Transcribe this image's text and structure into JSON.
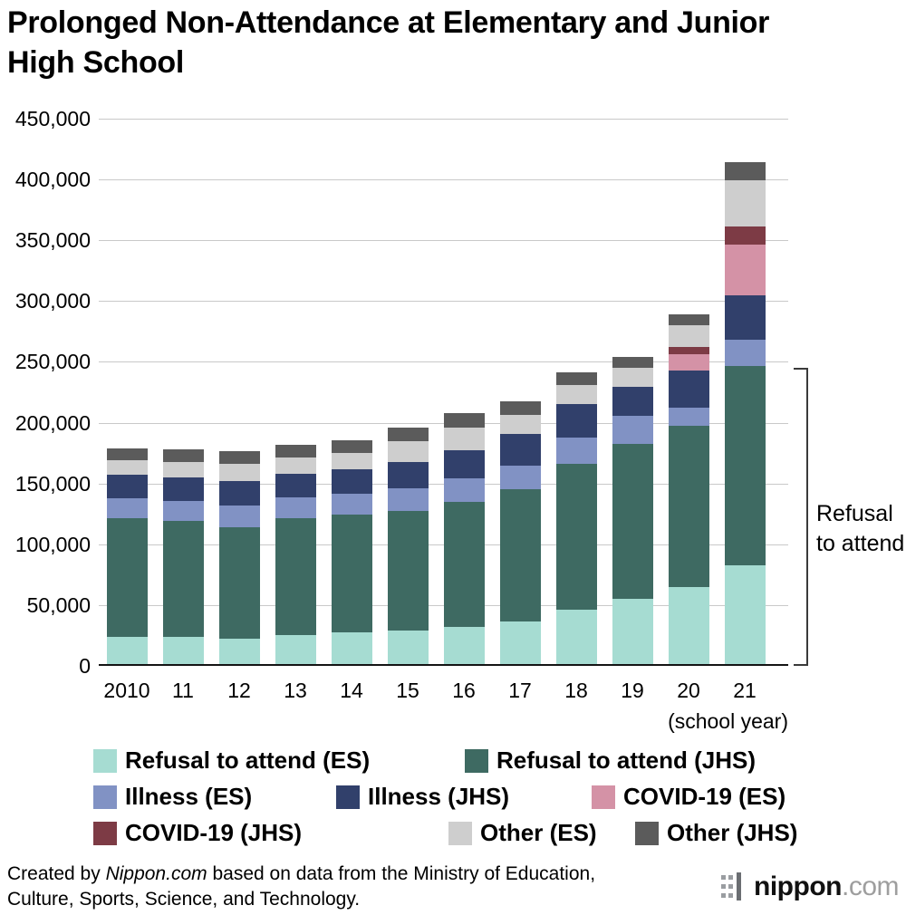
{
  "title": "Prolonged Non-Attendance at Elementary and Junior High School",
  "chart_data": {
    "type": "bar",
    "stacked": true,
    "title": "Prolonged Non-Attendance at Elementary and Junior High School",
    "categories": [
      "2010",
      "11",
      "12",
      "13",
      "14",
      "15",
      "16",
      "17",
      "18",
      "19",
      "20",
      "21"
    ],
    "x_axis_note": "(school year)",
    "ylim": [
      0,
      450000
    ],
    "yticks": [
      0,
      50000,
      100000,
      150000,
      200000,
      250000,
      300000,
      350000,
      400000,
      450000
    ],
    "grid": true,
    "legend_position": "bottom",
    "legend_rows": [
      [
        0,
        1
      ],
      [
        2,
        3,
        4
      ],
      [
        5,
        6,
        7
      ]
    ],
    "series": [
      {
        "name": "Refusal to attend (ES)",
        "color": "#a6dcd2",
        "values": [
          22300,
          22600,
          21200,
          24200,
          25900,
          27600,
          30400,
          35000,
          44800,
          53400,
          63400,
          81500
        ]
      },
      {
        "name": "Refusal to attend (JHS)",
        "color": "#3e6a62",
        "values": [
          97400,
          94800,
          91400,
          95400,
          97000,
          98400,
          103200,
          109000,
          119700,
          127900,
          132800,
          163400
        ]
      },
      {
        "name": "Illness (ES)",
        "color": "#8192c4",
        "values": [
          17000,
          17000,
          18000,
          17500,
          17500,
          18500,
          19000,
          19500,
          22000,
          23000,
          15000,
          22000
        ]
      },
      {
        "name": "Illness (JHS)",
        "color": "#31406b",
        "values": [
          19000,
          19000,
          20000,
          19500,
          20000,
          22000,
          23000,
          25500,
          27000,
          24000,
          30000,
          36000
        ]
      },
      {
        "name": "COVID-19 (ES)",
        "color": "#d492a6",
        "values": [
          0,
          0,
          0,
          0,
          0,
          0,
          0,
          0,
          0,
          0,
          14000,
          42000
        ]
      },
      {
        "name": "COVID-19 (JHS)",
        "color": "#7d3b45",
        "values": [
          0,
          0,
          0,
          0,
          0,
          0,
          0,
          0,
          0,
          0,
          5500,
          15000
        ]
      },
      {
        "name": "Other (ES)",
        "color": "#cecece",
        "values": [
          12000,
          13000,
          14000,
          13500,
          13500,
          16500,
          19000,
          16000,
          16000,
          15000,
          18000,
          38000
        ]
      },
      {
        "name": "Other (JHS)",
        "color": "#5b5b5b",
        "values": [
          10000,
          10000,
          10500,
          10500,
          10500,
          11500,
          11500,
          11000,
          10500,
          9000,
          9000,
          15000
        ]
      }
    ],
    "annotation": {
      "label": "Refusal\nto attend",
      "covers_series": [
        "Refusal to attend (ES)",
        "Refusal to attend (JHS)"
      ],
      "covers_category": "21",
      "value_top": 244900,
      "value_bottom": 0
    }
  },
  "footer": {
    "prefix": "Created by ",
    "source": "Nippon.com",
    "suffix": " based on data from the Ministry of Education, Culture, Sports, Science, and Technology."
  },
  "logo": {
    "brand": "nippon",
    "tld": ".com"
  }
}
